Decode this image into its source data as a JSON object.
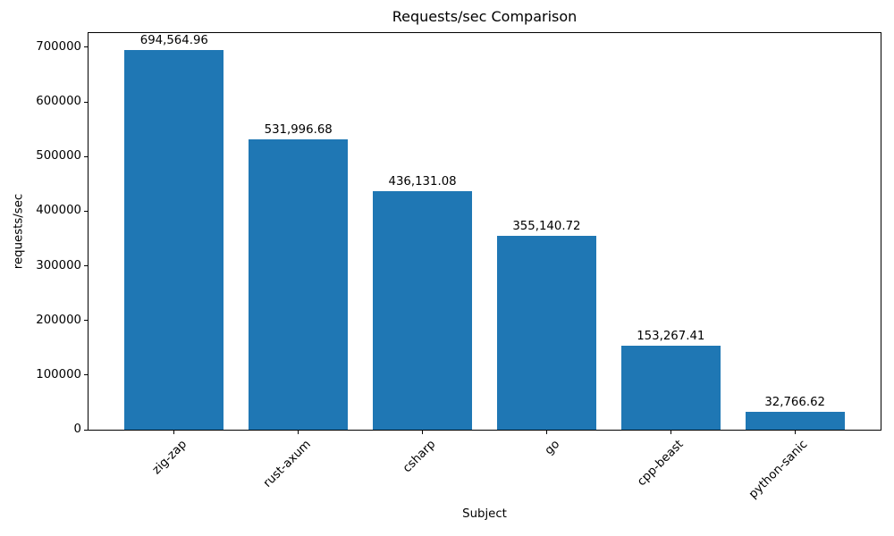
{
  "chart_data": {
    "type": "bar",
    "title": "Requests/sec Comparison",
    "xlabel": "Subject",
    "ylabel": "requests/sec",
    "categories": [
      "zig-zap",
      "rust-axum",
      "csharp",
      "go",
      "cpp-beast",
      "python-sanic"
    ],
    "values": [
      694564.96,
      531996.68,
      436131.08,
      355140.72,
      153267.41,
      32766.62
    ],
    "value_labels": [
      "694,564.96",
      "531,996.68",
      "436,131.08",
      "355,140.72",
      "153,267.41",
      "32,766.62"
    ],
    "ytick_values": [
      0,
      100000,
      200000,
      300000,
      400000,
      500000,
      600000,
      700000
    ],
    "ytick_labels": [
      "0",
      "100000",
      "200000",
      "300000",
      "400000",
      "500000",
      "600000",
      "700000"
    ],
    "ylim": [
      0,
      726000
    ],
    "bar_color": "#1f77b4",
    "grid": false,
    "legend": null
  }
}
